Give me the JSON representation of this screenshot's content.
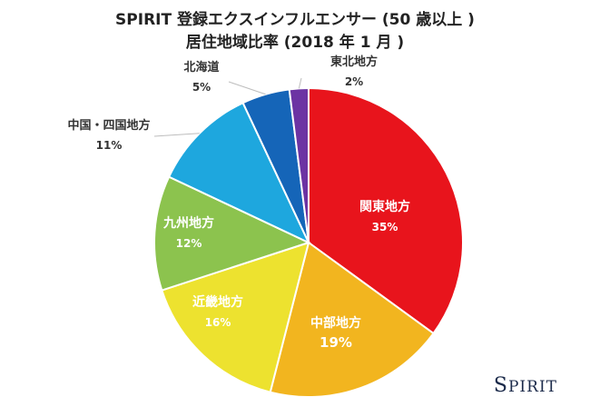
{
  "chart_data": {
    "type": "pie",
    "title": "SPIRIT 登録エクスインフルエンサー (50 歳以上 )",
    "subtitle": "居住地域比率 (2018 年 1 月 )",
    "start_angle_deg": 0,
    "direction": "clockwise",
    "slices": [
      {
        "label": "関東地方",
        "value": 35,
        "value_label": "35%",
        "color": "#e8141c"
      },
      {
        "label": "中部地方",
        "value": 19,
        "value_label": "19%",
        "color": "#f2b51f"
      },
      {
        "label": "近畿地方",
        "value": 16,
        "value_label": "16%",
        "color": "#ede22f"
      },
      {
        "label": "九州地方",
        "value": 12,
        "value_label": "12%",
        "color": "#8cc34e"
      },
      {
        "label": "中国・四国地方",
        "value": 11,
        "value_label": "11%",
        "color": "#1ea7de"
      },
      {
        "label": "北海道",
        "value": 5,
        "value_label": "5%",
        "color": "#1565b8"
      },
      {
        "label": "東北地方",
        "value": 2,
        "value_label": "2%",
        "color": "#6c33a3"
      }
    ],
    "legend": "none"
  },
  "brand": {
    "logo_text": "SPIRIT",
    "color": "#1b2a4a"
  }
}
